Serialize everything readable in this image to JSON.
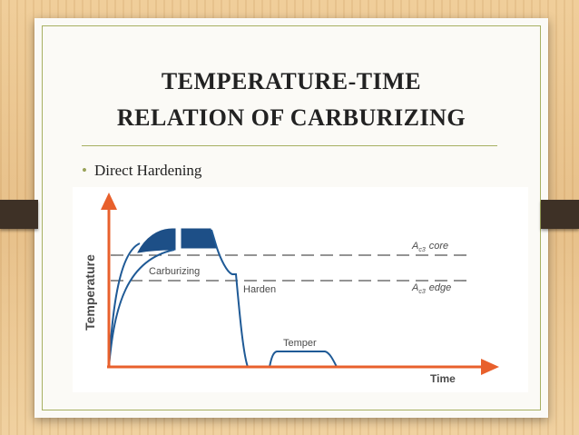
{
  "slide": {
    "title_line1": "TEMPERATURE-TIME",
    "title_line2": "RELATION OF CARBURIZING",
    "bullet": "Direct Hardening"
  },
  "diagram": {
    "y_axis_label": "Temperature",
    "x_axis_label": "Time",
    "stage_carburizing": "Carburizing",
    "stage_harden": "Harden",
    "stage_temper": "Temper",
    "ac3_core_prefix": "A",
    "ac3_core_sub": "c3",
    "ac3_core_word": "core",
    "ac3_edge_prefix": "A",
    "ac3_edge_sub": "c3",
    "ac3_edge_word": "edge",
    "colors": {
      "axis": "#e8602c",
      "curve": "#1f5a96",
      "band": "#1d4f87",
      "dashed": "#555555"
    }
  }
}
